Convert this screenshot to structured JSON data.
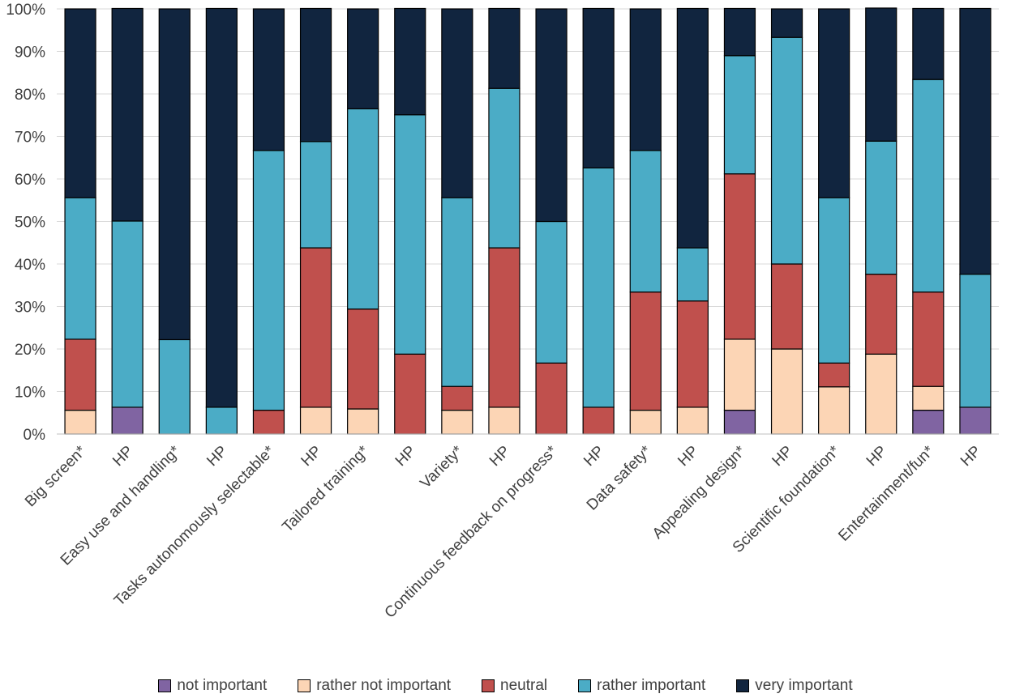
{
  "chart_data": {
    "type": "stacked-bar-100",
    "title": "",
    "xlabel": "",
    "ylabel": "",
    "ylim": [
      0,
      100
    ],
    "yticks": [
      "0%",
      "10%",
      "20%",
      "30%",
      "40%",
      "50%",
      "60%",
      "70%",
      "80%",
      "90%",
      "100%"
    ],
    "grid": true,
    "legend_position": "bottom",
    "categories": [
      "Big screen*",
      "HP",
      "Easy use and handling*",
      "HP",
      "Tasks autonomously selectable*",
      "HP",
      "Tailored training*",
      "HP",
      "Variety*",
      "HP",
      "Continuous feedback on progress*",
      "HP",
      "Data safety*",
      "HP",
      "Appealing design*",
      "HP",
      "Scientific foundation*",
      "HP",
      "Entertainment/fun*",
      "HP"
    ],
    "series": [
      {
        "name": "not important",
        "color": "#8064a2",
        "values": [
          0,
          6.3,
          0,
          0,
          0,
          0,
          0,
          0,
          0,
          0,
          0,
          0,
          0,
          0,
          5.6,
          0,
          0,
          0,
          5.6,
          6.3
        ]
      },
      {
        "name": "rather not important",
        "color": "#fcd5b5",
        "values": [
          5.6,
          0,
          0,
          0,
          0,
          6.3,
          5.9,
          0,
          5.6,
          6.3,
          0,
          0,
          5.6,
          6.3,
          16.7,
          20,
          11.1,
          18.8,
          5.6,
          0
        ]
      },
      {
        "name": "neutral",
        "color": "#c0504d",
        "values": [
          16.7,
          0,
          0,
          0,
          5.6,
          37.5,
          23.5,
          18.8,
          5.6,
          37.5,
          16.7,
          6.3,
          27.8,
          25,
          38.9,
          20,
          5.6,
          18.8,
          22.2,
          0
        ]
      },
      {
        "name": "rather important",
        "color": "#4bacc6",
        "values": [
          33.3,
          43.8,
          22.2,
          6.3,
          61.1,
          25,
          47.1,
          56.3,
          44.4,
          37.5,
          33.3,
          56.3,
          33.3,
          12.5,
          27.8,
          53.3,
          38.9,
          31.3,
          50,
          31.3
        ]
      },
      {
        "name": "very important",
        "color": "#11253f",
        "values": [
          44.4,
          50,
          77.8,
          93.8,
          33.3,
          31.3,
          23.5,
          25,
          44.4,
          18.8,
          50,
          37.5,
          33.3,
          56.3,
          11.1,
          6.7,
          44.4,
          31.3,
          16.7,
          62.5
        ]
      }
    ]
  }
}
